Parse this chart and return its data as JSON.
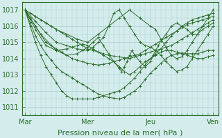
{
  "background_color": "#d4ecec",
  "grid_color": "#aecece",
  "line_color": "#2d6e2d",
  "marker": "+",
  "xlabel": "Pression niveau de la mer( hPa )",
  "xtick_labels": [
    "Mar",
    "Mer",
    "Jeu",
    "Ven"
  ],
  "xtick_positions": [
    0,
    96,
    192,
    288
  ],
  "ylim": [
    1010.5,
    1017.5
  ],
  "ytick_values": [
    1011,
    1012,
    1013,
    1014,
    1015,
    1016,
    1017
  ],
  "xlabel_fontsize": 8,
  "ytick_fontsize": 7,
  "xtick_fontsize": 7,
  "series": [
    {
      "x": [
        0,
        8,
        16,
        24,
        32,
        40,
        48,
        56,
        64,
        72,
        80,
        88,
        96,
        104,
        112,
        120,
        128,
        136,
        144,
        152,
        160,
        168,
        176,
        184,
        192,
        200,
        208,
        216,
        224,
        232,
        240,
        248,
        256,
        264,
        272,
        280,
        288
      ],
      "y": [
        1017,
        1016.8,
        1016.6,
        1016.4,
        1016.2,
        1016.0,
        1015.8,
        1015.6,
        1015.4,
        1015.2,
        1015.0,
        1014.8,
        1014.6,
        1014.5,
        1014.4,
        1014.3,
        1014.2,
        1014.15,
        1014.1,
        1014.05,
        1014.0,
        1014.1,
        1014.2,
        1014.3,
        1014.4,
        1014.5,
        1014.6,
        1014.7,
        1014.8,
        1015.0,
        1015.2,
        1015.4,
        1015.6,
        1015.8,
        1016.0,
        1016.2,
        1016.4
      ]
    },
    {
      "x": [
        0,
        8,
        16,
        24,
        32,
        40,
        48,
        56,
        64,
        72,
        80,
        88,
        96,
        104,
        112,
        120,
        128,
        136,
        144,
        152,
        160,
        168,
        176,
        184,
        192,
        200,
        208,
        216,
        224,
        232,
        240,
        248,
        256,
        264,
        272,
        280,
        288
      ],
      "y": [
        1017,
        1016.5,
        1016.0,
        1015.5,
        1015.0,
        1014.8,
        1014.6,
        1014.4,
        1014.2,
        1014.0,
        1013.9,
        1013.8,
        1013.7,
        1013.65,
        1013.6,
        1013.65,
        1013.7,
        1013.8,
        1013.9,
        1014.0,
        1014.1,
        1014.2,
        1014.3,
        1014.5,
        1014.7,
        1014.9,
        1015.1,
        1015.3,
        1015.5,
        1015.7,
        1015.9,
        1016.1,
        1016.2,
        1016.3,
        1016.4,
        1016.5,
        1016.6
      ]
    },
    {
      "x": [
        0,
        8,
        16,
        24,
        32,
        40,
        48,
        56,
        64,
        72,
        80,
        88,
        96,
        104,
        112,
        120,
        128,
        136,
        144,
        152,
        160,
        168,
        176,
        184,
        192,
        200,
        208,
        216,
        224,
        232,
        240,
        248,
        256,
        264,
        272,
        280,
        288
      ],
      "y": [
        1017,
        1016.2,
        1015.4,
        1014.8,
        1014.3,
        1013.9,
        1013.5,
        1013.2,
        1013.0,
        1012.8,
        1012.6,
        1012.4,
        1012.2,
        1012.0,
        1011.8,
        1011.7,
        1011.6,
        1011.55,
        1011.5,
        1011.6,
        1011.8,
        1012.0,
        1012.3,
        1012.7,
        1013.1,
        1013.4,
        1013.7,
        1014.0,
        1014.2,
        1014.3,
        1014.35,
        1014.3,
        1014.3,
        1014.3,
        1014.4,
        1014.5,
        1014.5
      ]
    },
    {
      "x": [
        0,
        8,
        16,
        24,
        32,
        40,
        48,
        56,
        64,
        72,
        80,
        88,
        96,
        104,
        112,
        120,
        128,
        136,
        144,
        152,
        160,
        168,
        176,
        184,
        192,
        200,
        208,
        216,
        224,
        232,
        240,
        248,
        256,
        264,
        272,
        280,
        288
      ],
      "y": [
        1017,
        1016.0,
        1015.0,
        1014.2,
        1013.5,
        1013.0,
        1012.5,
        1012.0,
        1011.7,
        1011.5,
        1011.5,
        1011.5,
        1011.5,
        1011.5,
        1011.6,
        1011.7,
        1011.8,
        1011.9,
        1012.0,
        1012.2,
        1012.5,
        1012.8,
        1013.2,
        1013.6,
        1014.0,
        1014.2,
        1014.4,
        1014.5,
        1014.5,
        1014.4,
        1014.3,
        1014.2,
        1014.1,
        1014.0,
        1014.0,
        1014.1,
        1014.2
      ]
    },
    {
      "x": [
        0,
        16,
        32,
        48,
        64,
        80,
        96,
        112,
        128,
        144,
        160,
        176,
        192,
        200,
        208,
        216,
        224,
        232,
        240,
        248,
        256,
        264,
        272,
        280,
        288
      ],
      "y": [
        1017,
        1016.6,
        1016.2,
        1015.8,
        1015.5,
        1015.2,
        1015.0,
        1015.5,
        1016.0,
        1016.5,
        1017.0,
        1016.5,
        1016.0,
        1015.8,
        1015.2,
        1014.7,
        1014.2,
        1014.0,
        1014.1,
        1014.5,
        1015.0,
        1015.5,
        1016.0,
        1016.5,
        1017.0
      ]
    },
    {
      "x": [
        0,
        16,
        32,
        48,
        64,
        80,
        96,
        104,
        112,
        120,
        128,
        136,
        144,
        152,
        160,
        168,
        176,
        184,
        192,
        200,
        208,
        216,
        224,
        232,
        240,
        248,
        256,
        264,
        272,
        280,
        288
      ],
      "y": [
        1017,
        1016.3,
        1015.6,
        1015.0,
        1014.8,
        1014.6,
        1014.5,
        1014.7,
        1015.0,
        1015.3,
        1016.0,
        1016.8,
        1017.0,
        1016.5,
        1016.0,
        1015.5,
        1015.0,
        1014.8,
        1014.7,
        1014.5,
        1014.2,
        1013.8,
        1013.5,
        1013.2,
        1013.3,
        1013.5,
        1014.0,
        1014.5,
        1015.0,
        1015.5,
        1016.0
      ]
    },
    {
      "x": [
        0,
        24,
        48,
        64,
        80,
        88,
        96,
        104,
        112,
        120,
        128,
        136,
        144,
        148,
        152,
        156,
        160,
        164,
        168,
        176,
        184,
        192,
        196,
        200,
        204,
        208,
        216,
        224,
        232,
        240,
        248,
        256,
        264,
        272,
        280,
        288
      ],
      "y": [
        1017,
        1015.5,
        1014.5,
        1014.2,
        1014.3,
        1014.5,
        1014.7,
        1015.0,
        1015.3,
        1014.8,
        1014.3,
        1013.8,
        1013.4,
        1013.2,
        1013.5,
        1013.8,
        1014.2,
        1014.5,
        1014.2,
        1013.8,
        1013.5,
        1013.8,
        1014.2,
        1014.5,
        1014.8,
        1015.1,
        1015.5,
        1016.0,
        1016.2,
        1016.0,
        1015.8,
        1015.5,
        1015.5,
        1015.8,
        1016.0,
        1016.2
      ]
    },
    {
      "x": [
        0,
        16,
        32,
        48,
        64,
        72,
        80,
        88,
        96,
        104,
        112,
        120,
        128,
        136,
        144,
        152,
        160,
        168,
        176,
        184,
        192,
        200,
        208,
        216,
        224,
        232,
        240,
        248,
        256,
        264,
        272,
        280,
        288
      ],
      "y": [
        1017,
        1015.8,
        1014.8,
        1014.5,
        1014.6,
        1014.7,
        1014.8,
        1014.9,
        1014.8,
        1014.6,
        1014.4,
        1014.2,
        1014.0,
        1013.8,
        1013.5,
        1013.2,
        1013.0,
        1013.2,
        1013.5,
        1013.8,
        1014.0,
        1014.3,
        1014.6,
        1015.0,
        1015.4,
        1015.7,
        1016.0,
        1016.2,
        1016.4,
        1016.5,
        1016.6,
        1016.7,
        1016.8
      ]
    }
  ]
}
